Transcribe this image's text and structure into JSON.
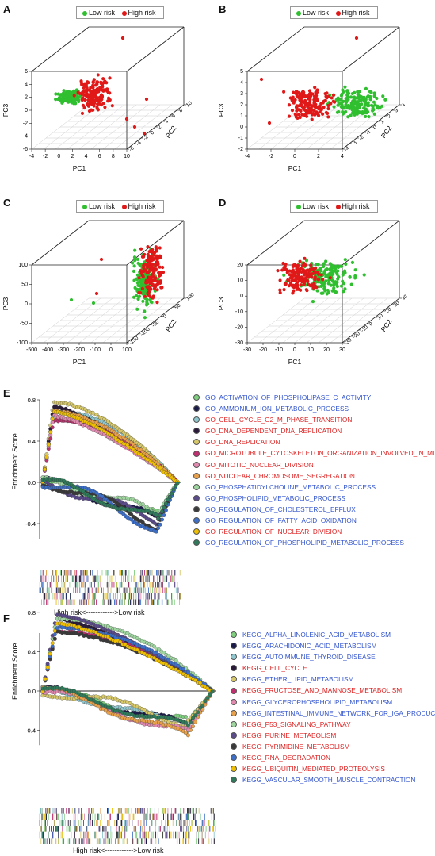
{
  "colors": {
    "low": "#2fbf2f",
    "high": "#e01818",
    "blue_text": "#3355cc",
    "red_text": "#dd2222"
  },
  "legend": {
    "low": "Low risk",
    "high": "High risk"
  },
  "pca_panels": [
    {
      "letter": "A",
      "xlabel": "PC1",
      "ylabel": "PC2",
      "zlabel": "PC3",
      "x_ticks": [
        "-4",
        "-2",
        "0",
        "2",
        "4",
        "6",
        "8",
        "10"
      ],
      "y_ticks": [
        "-6",
        "-4",
        "-2",
        "0",
        "2",
        "4",
        "6",
        "8",
        "10"
      ],
      "z_ticks": [
        "-6",
        "-4",
        "-2",
        "0",
        "2",
        "4",
        "6"
      ]
    },
    {
      "letter": "B",
      "xlabel": "PC1",
      "ylabel": "PC2",
      "zlabel": "PC3",
      "x_ticks": [
        "-4",
        "-2",
        "0",
        "2",
        "4"
      ],
      "y_ticks": [
        "-4",
        "-3",
        "-2",
        "-1",
        "0",
        "1",
        "2",
        "3",
        "4"
      ],
      "z_ticks": [
        "-2",
        "-1",
        "0",
        "1",
        "2",
        "3",
        "4",
        "5"
      ]
    },
    {
      "letter": "C",
      "xlabel": "PC1",
      "ylabel": "PC2",
      "zlabel": "PC3",
      "x_ticks": [
        "-500",
        "-400",
        "-300",
        "-200",
        "-100",
        "0",
        "100"
      ],
      "y_ticks": [
        "-150",
        "-100",
        "-50",
        "0",
        "50",
        "100"
      ],
      "z_ticks": [
        "-100",
        "-50",
        "0",
        "50",
        "100"
      ]
    },
    {
      "letter": "D",
      "xlabel": "PC1",
      "ylabel": "PC2",
      "zlabel": "PC3",
      "x_ticks": [
        "-30",
        "-20",
        "-10",
        "0",
        "10",
        "20",
        "30"
      ],
      "y_ticks": [
        "-30",
        "-20",
        "-10",
        "0",
        "10",
        "20",
        "30",
        "40"
      ],
      "z_ticks": [
        "-30",
        "-20",
        "-10",
        "0",
        "10",
        "20"
      ]
    }
  ],
  "gsea_E": {
    "letter": "E",
    "ylabel": "Enrichment Score",
    "y_ticks": [
      "0.8",
      "0.4",
      "0.0",
      "-0.4"
    ],
    "rank_caption": "High risk<------------>Low risk",
    "sets": [
      {
        "name": "GO_ACTIVATION_OF_PHOSPHOLIPASE_C_ACTIVITY",
        "group": "low",
        "color": "#7ecf7e"
      },
      {
        "name": "GO_AMMONIUM_ION_METABOLIC_PROCESS",
        "group": "low",
        "color": "#1a1a4a"
      },
      {
        "name": "GO_CELL_CYCLE_G2_M_PHASE_TRANSITION",
        "group": "high",
        "color": "#8fc7cf"
      },
      {
        "name": "GO_DNA_DEPENDENT_DNA_REPLICATION",
        "group": "high",
        "color": "#2a1a3a"
      },
      {
        "name": "GO_DNA_REPLICATION",
        "group": "high",
        "color": "#d7c86a"
      },
      {
        "name": "GO_MICROTUBULE_CYTOSKELETON_ORGANIZATION_INVOLVED_IN_MITOSIS",
        "group": "high",
        "color": "#c03070"
      },
      {
        "name": "GO_MITOTIC_NUCLEAR_DIVISION",
        "group": "high",
        "color": "#e08ab0"
      },
      {
        "name": "GO_NUCLEAR_CHROMOSOME_SEGREGATION",
        "group": "high",
        "color": "#e8a14a"
      },
      {
        "name": "GO_PHOSPHATIDYLCHOLINE_METABOLIC_PROCESS",
        "group": "low",
        "color": "#9fd6a0"
      },
      {
        "name": "GO_PHOSPHOLIPID_METABOLIC_PROCESS",
        "group": "low",
        "color": "#5b4b8a"
      },
      {
        "name": "GO_REGULATION_OF_CHOLESTEROL_EFFLUX",
        "group": "low",
        "color": "#3a3a3a"
      },
      {
        "name": "GO_REGULATION_OF_FATTY_ACID_OXIDATION",
        "group": "low",
        "color": "#3d6fc8"
      },
      {
        "name": "GO_REGULATION_OF_NUCLEAR_DIVISION",
        "group": "high",
        "color": "#f0c000"
      },
      {
        "name": "GO_REGULATION_OF_PHOSPHOLIPID_METABOLIC_PROCESS",
        "group": "low",
        "color": "#2f7a5a"
      }
    ]
  },
  "gsea_F": {
    "letter": "F",
    "ylabel": "Enrichment Score",
    "y_ticks": [
      "0.8",
      "0.4",
      "0.0",
      "-0.4"
    ],
    "rank_caption": "High risk<------------>Low risk",
    "sets": [
      {
        "name": "KEGG_ALPHA_LINOLENIC_ACID_METABOLISM",
        "group": "low",
        "color": "#7ecf7e"
      },
      {
        "name": "KEGG_ARACHIDONIC_ACID_METABOLISM",
        "group": "low",
        "color": "#1a1a4a"
      },
      {
        "name": "KEGG_AUTOIMMUNE_THYROID_DISEASE",
        "group": "low",
        "color": "#8fc7cf"
      },
      {
        "name": "KEGG_CELL_CYCLE",
        "group": "high",
        "color": "#2a1a3a"
      },
      {
        "name": "KEGG_ETHER_LIPID_METABOLISM",
        "group": "low",
        "color": "#d7c86a"
      },
      {
        "name": "KEGG_FRUCTOSE_AND_MANNOSE_METABOLISM",
        "group": "high",
        "color": "#c03070"
      },
      {
        "name": "KEGG_GLYCEROPHOSPHOLIPID_METABOLISM",
        "group": "low",
        "color": "#e08ab0"
      },
      {
        "name": "KEGG_INTESTINAL_IMMUNE_NETWORK_FOR_IGA_PRODUCTION",
        "group": "low",
        "color": "#e8a14a"
      },
      {
        "name": "KEGG_P53_SIGNALING_PATHWAY",
        "group": "high",
        "color": "#9fd6a0"
      },
      {
        "name": "KEGG_PURINE_METABOLISM",
        "group": "high",
        "color": "#5b4b8a"
      },
      {
        "name": "KEGG_PYRIMIDINE_METABOLISM",
        "group": "high",
        "color": "#3a3a3a"
      },
      {
        "name": "KEGG_RNA_DEGRADATION",
        "group": "high",
        "color": "#3d6fc8"
      },
      {
        "name": "KEGG_UBIQUITIN_MEDIATED_PROTEOLYSIS",
        "group": "high",
        "color": "#f0c000"
      },
      {
        "name": "KEGG_VASCULAR_SMOOTH_MUSCLE_CONTRACTION",
        "group": "low",
        "color": "#2f7a5a"
      }
    ]
  }
}
